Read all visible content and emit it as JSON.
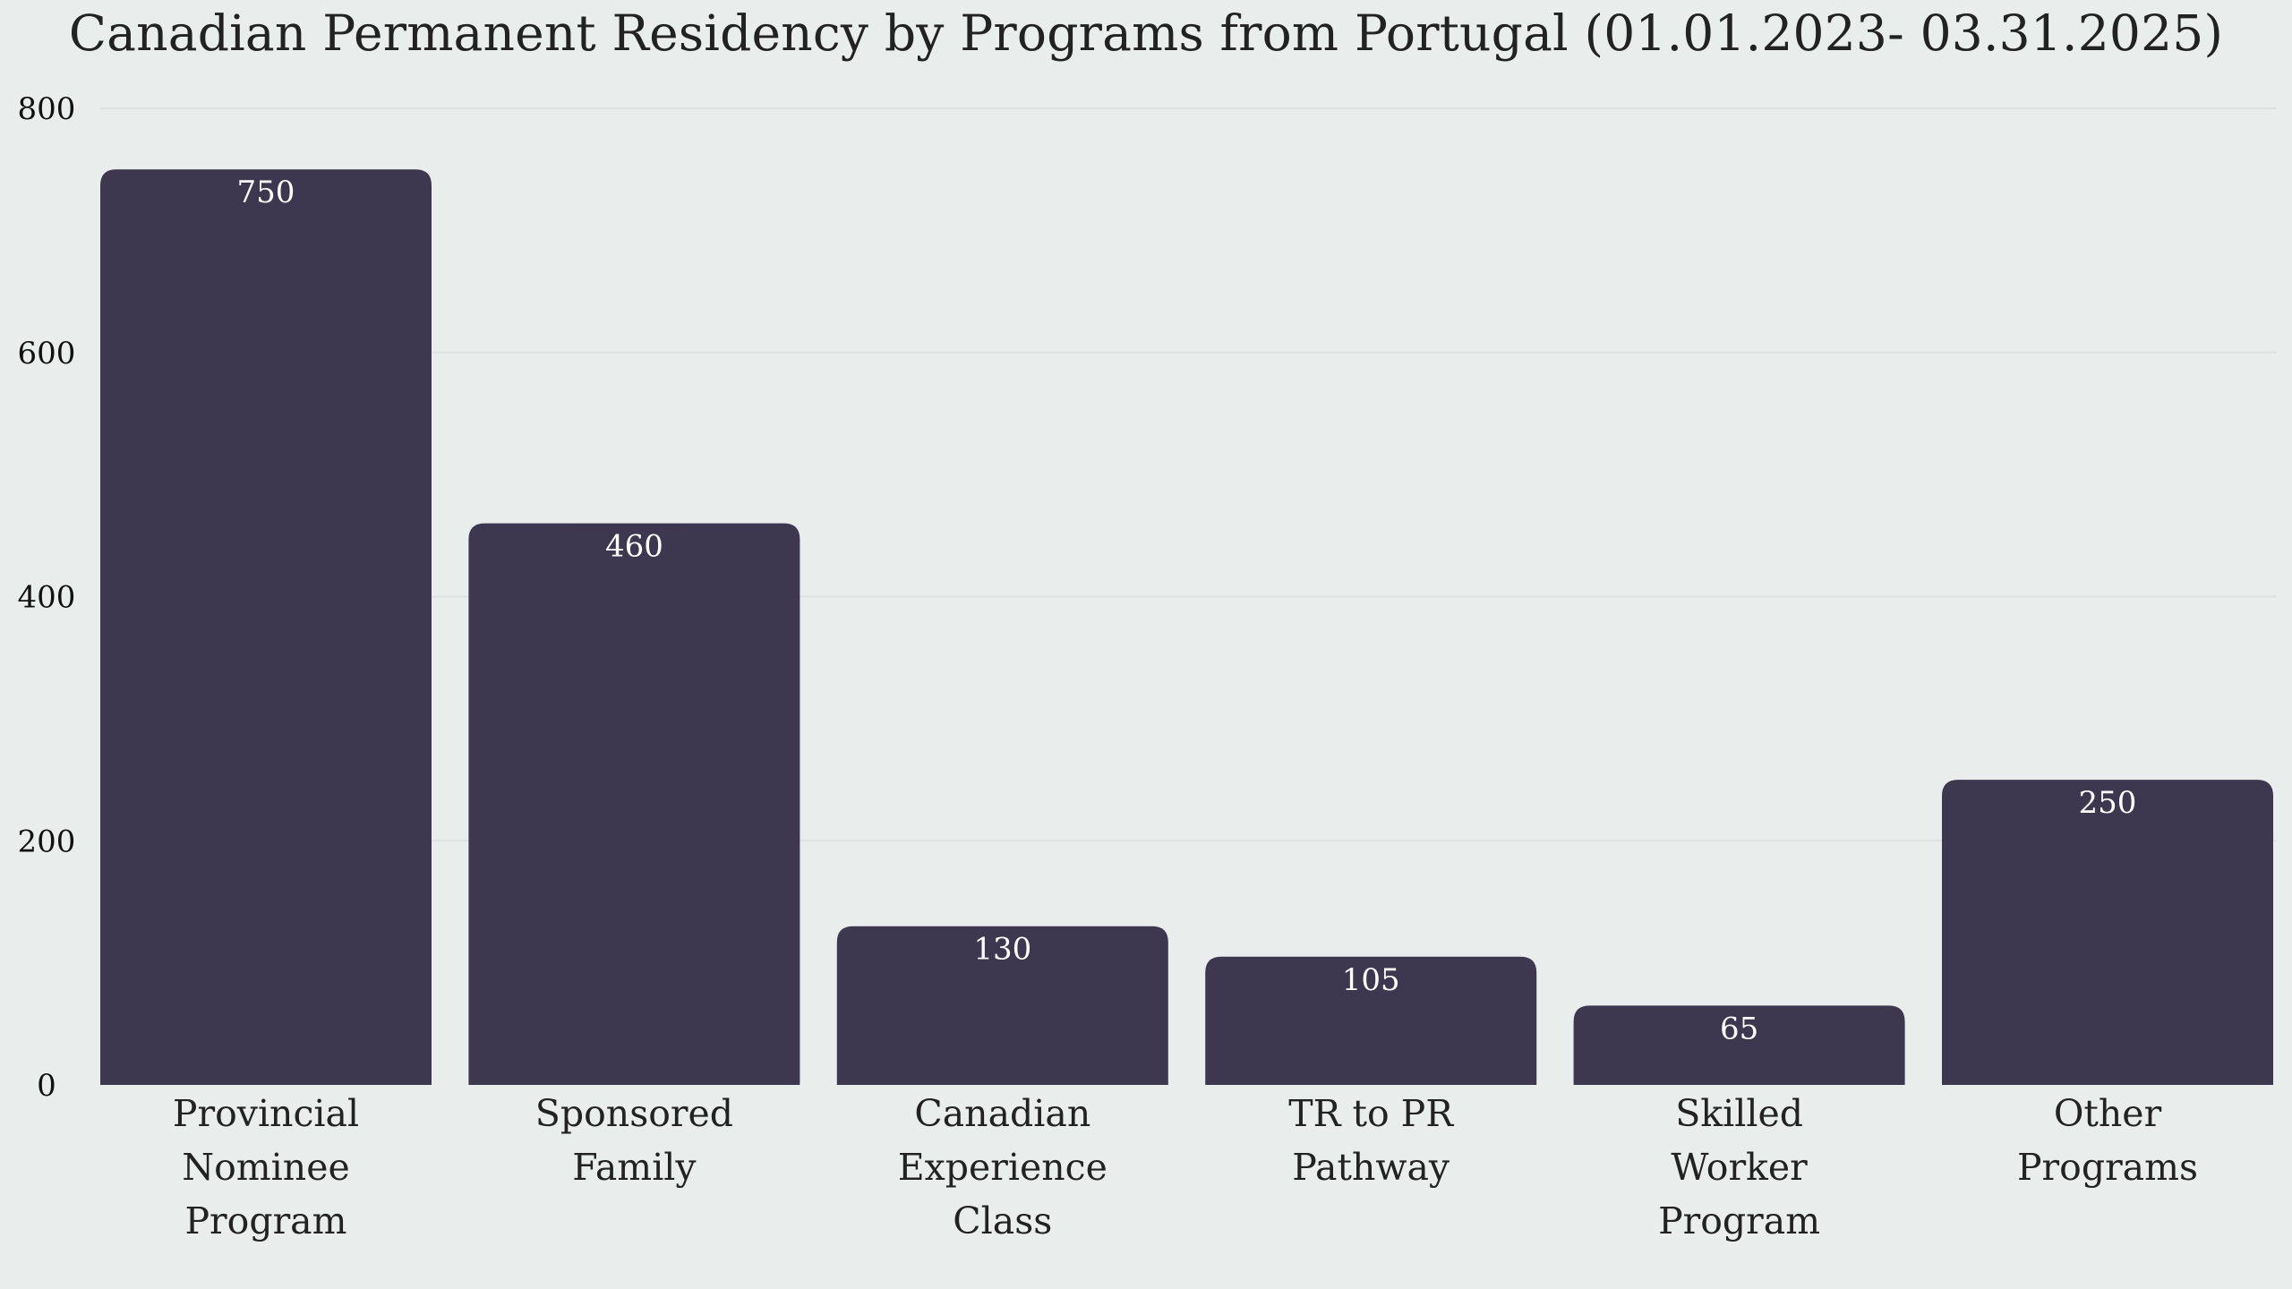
{
  "chart_data": {
    "type": "bar",
    "title": "Canadian Permanent Residency by Programs from Portugal (01.01.2023- 03.31.2025)",
    "categories": [
      [
        "Provincial",
        "Nominee",
        "Program"
      ],
      [
        "Sponsored",
        "Family"
      ],
      [
        "Canadian",
        "Experience",
        "Class"
      ],
      [
        "TR to PR",
        "Pathway"
      ],
      [
        "Skilled",
        "Worker",
        "Program"
      ],
      [
        "Other",
        "Programs"
      ]
    ],
    "values": [
      750,
      460,
      130,
      105,
      65,
      250
    ],
    "ylim": [
      0,
      800
    ],
    "yticks": [
      0,
      200,
      400,
      600,
      800
    ],
    "xlabel": "",
    "ylabel": "",
    "grid": true,
    "legend": "none",
    "colors": {
      "bar": "#3d3850",
      "background": "#e9edeb",
      "grid": "#dde1df",
      "data_label": "#ffffff"
    }
  }
}
